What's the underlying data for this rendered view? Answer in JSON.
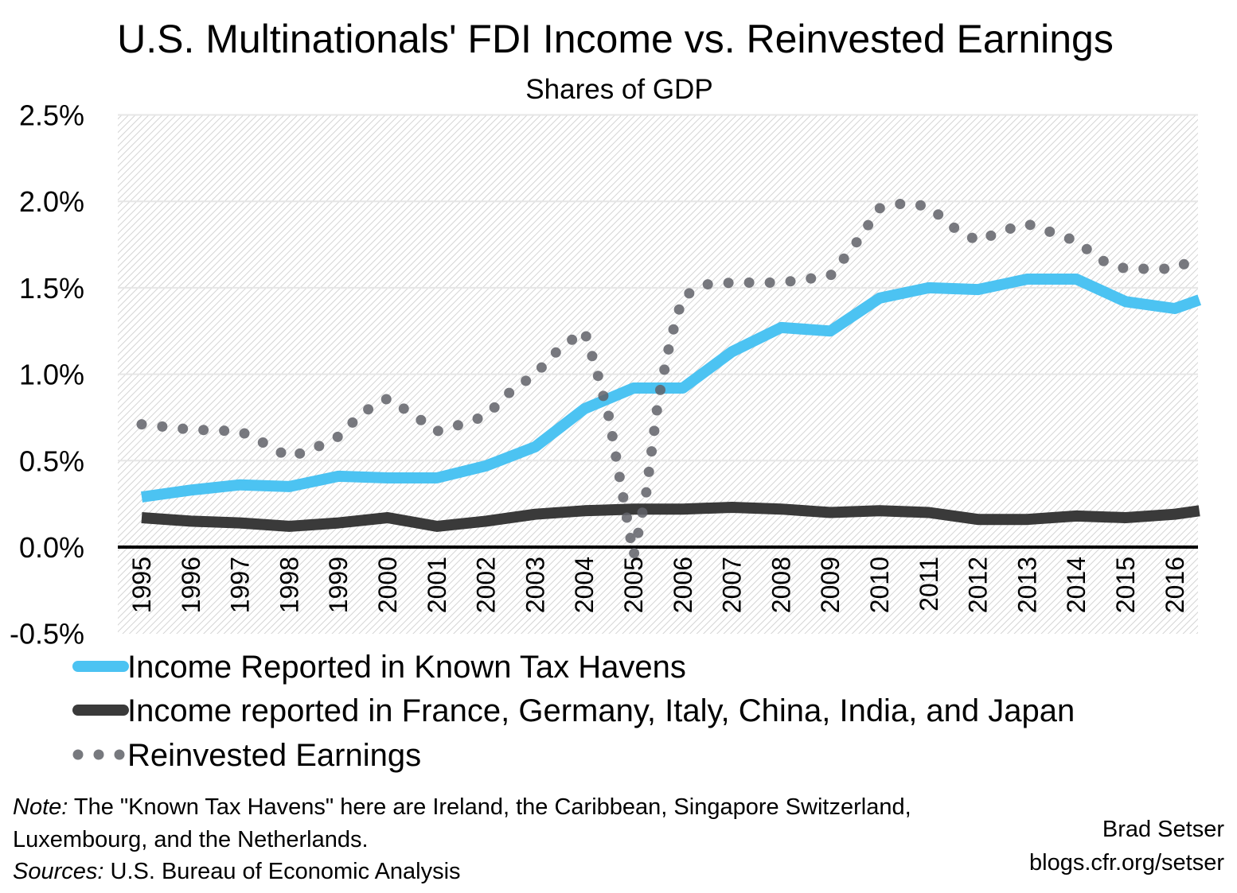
{
  "chart_data": {
    "type": "line",
    "title": "U.S. Multinationals' FDI Income vs. Reinvested Earnings",
    "subtitle": "Shares of GDP",
    "xlabel": "",
    "ylabel": "",
    "ylim": [
      -0.5,
      2.5
    ],
    "yticks": [
      "2.5%",
      "2.0%",
      "1.5%",
      "1.0%",
      "0.5%",
      "0.0%",
      "-0.5%"
    ],
    "ytick_values": [
      2.5,
      2.0,
      1.5,
      1.0,
      0.5,
      0.0,
      -0.5
    ],
    "xticks": [
      "1995",
      "1996",
      "1997",
      "1998",
      "1999",
      "2000",
      "2001",
      "2002",
      "2003",
      "2004",
      "2005",
      "2006",
      "2007",
      "2008",
      "2009",
      "2010",
      "2011",
      "2012",
      "2013",
      "2014",
      "2015",
      "2016"
    ],
    "grid": true,
    "legend_placement": "bottom",
    "series": [
      {
        "name": "Income Reported in Known Tax Havens",
        "color": "#4cc3f2",
        "style": "solid",
        "x": [
          1995,
          1996,
          1997,
          1998,
          1999,
          2000,
          2001,
          2002,
          2003,
          2004,
          2005,
          2006,
          2007,
          2008,
          2009,
          2010,
          2011,
          2012,
          2013,
          2014,
          2015,
          2016,
          2016.5
        ],
        "values": [
          0.29,
          0.33,
          0.36,
          0.35,
          0.41,
          0.4,
          0.4,
          0.47,
          0.58,
          0.8,
          0.92,
          0.92,
          1.13,
          1.27,
          1.25,
          1.44,
          1.5,
          1.49,
          1.55,
          1.55,
          1.42,
          1.38,
          1.43
        ]
      },
      {
        "name": "Income reported in France, Germany, Italy, China, India, and Japan",
        "color": "#3a3a3a",
        "style": "solid",
        "x": [
          1995,
          1996,
          1997,
          1998,
          1999,
          2000,
          2001,
          2002,
          2003,
          2004,
          2005,
          2006,
          2007,
          2008,
          2009,
          2010,
          2011,
          2012,
          2013,
          2014,
          2015,
          2016,
          2016.5
        ],
        "values": [
          0.17,
          0.15,
          0.14,
          0.12,
          0.14,
          0.17,
          0.12,
          0.15,
          0.19,
          0.21,
          0.22,
          0.22,
          0.23,
          0.22,
          0.2,
          0.21,
          0.2,
          0.16,
          0.16,
          0.18,
          0.17,
          0.19,
          0.21
        ]
      },
      {
        "name": "Reinvested Earnings",
        "color": "#606268",
        "style": "dotted",
        "x": [
          1995,
          1996,
          1997,
          1997.5,
          1998,
          1998.5,
          1999,
          1999.5,
          2000,
          2000.5,
          2001,
          2001.5,
          2002,
          2002.5,
          2003,
          2003.5,
          2004,
          2004.25,
          2004.5,
          2004.75,
          2005,
          2005.25,
          2005.5,
          2005.75,
          2006,
          2006.5,
          2007,
          2008,
          2009,
          2009.5,
          2010,
          2010.5,
          2011,
          2011.5,
          2012,
          2012.5,
          2013,
          2013.5,
          2014,
          2014.5,
          2015,
          2015.5,
          2016,
          2016.5
        ],
        "values": [
          0.71,
          0.68,
          0.67,
          0.6,
          0.52,
          0.57,
          0.64,
          0.78,
          0.86,
          0.77,
          0.67,
          0.71,
          0.76,
          0.9,
          1.0,
          1.15,
          1.25,
          1.02,
          0.75,
          0.35,
          -0.05,
          0.3,
          0.85,
          1.2,
          1.45,
          1.52,
          1.53,
          1.53,
          1.57,
          1.75,
          1.96,
          1.99,
          1.97,
          1.85,
          1.77,
          1.83,
          1.87,
          1.82,
          1.77,
          1.66,
          1.61,
          1.61,
          1.61,
          1.68
        ]
      }
    ]
  },
  "notes": {
    "note_label": "Note:",
    "note_text": " The \"Known Tax Havens\" here are Ireland, the Caribbean, Singapore Switzerland,",
    "note_text2": "Luxembourg, and the Netherlands.",
    "sources_label": "Sources:",
    "sources_text": " U.S. Bureau of Economic Analysis"
  },
  "credit": {
    "author": "Brad Setser",
    "url": "blogs.cfr.org/setser"
  }
}
